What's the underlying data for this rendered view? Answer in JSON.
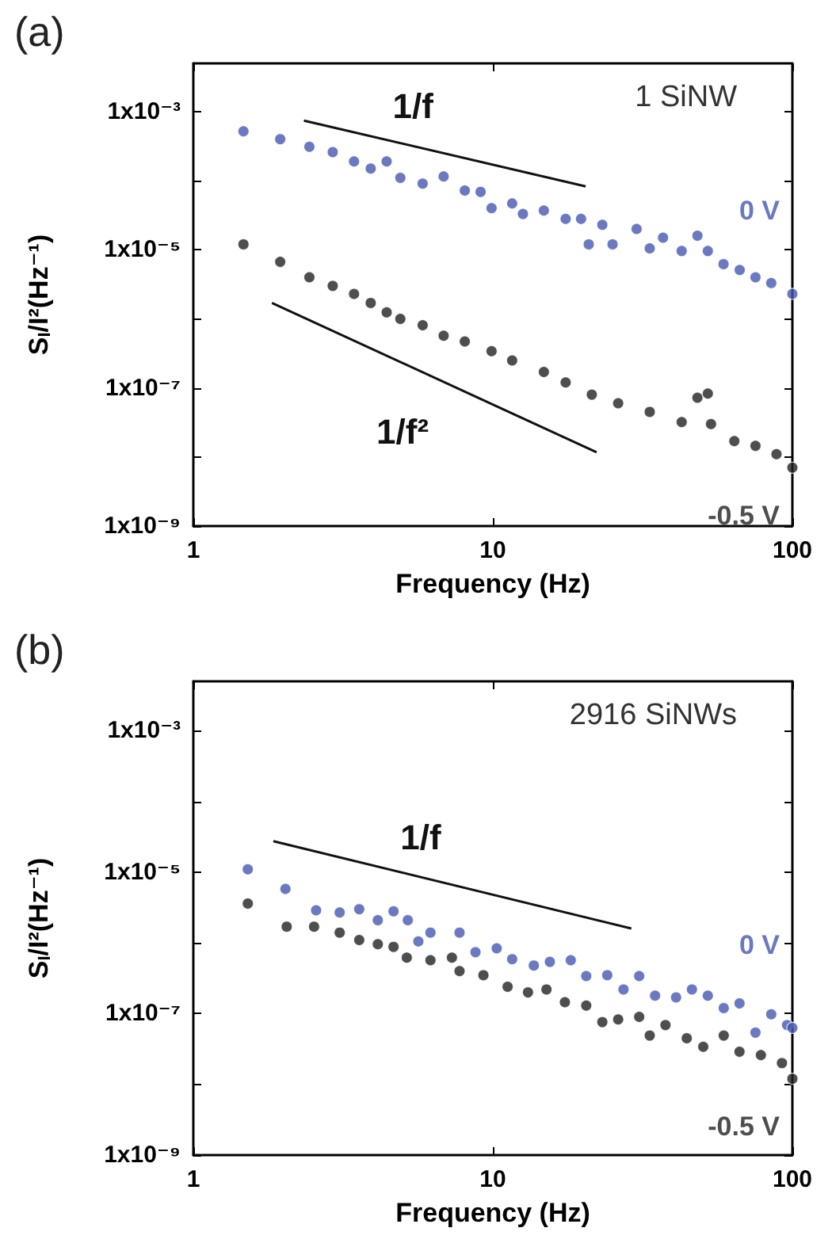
{
  "chart_data": [
    {
      "type": "scatter",
      "title": "(a)",
      "xlabel": "Frequency (Hz)",
      "ylabel": "S$_{I}$/I²(Hz⁻¹)",
      "log": "xy",
      "xlim": [
        1,
        100
      ],
      "xticks": [
        1,
        10,
        100
      ],
      "ylim": [
        1e-09,
        0.005
      ],
      "yticks": [
        {
          "value": 1e-09,
          "label": "1x10⁻⁹"
        },
        {
          "value": 1e-08,
          "label": null
        },
        {
          "value": 1e-07,
          "label": "1x10⁻⁷"
        },
        {
          "value": 1e-06,
          "label": null
        },
        {
          "value": 1e-05,
          "label": "1x10⁻⁵"
        },
        {
          "value": 0.0001,
          "label": null
        },
        {
          "value": 0.001,
          "label": "1x10⁻³"
        }
      ],
      "grid": false,
      "legend": false,
      "marker": "circle",
      "annotations": [
        "1 SiNW",
        "1/f",
        "1/f²"
      ],
      "series": [
        {
          "name": "0 V",
          "color": "#4557b0",
          "x": [
            1.47,
            1.95,
            2.44,
            2.92,
            3.44,
            3.91,
            4.42,
            4.91,
            5.83,
            6.85,
            8.06,
            9.1,
            9.9,
            11.6,
            12.6,
            14.8,
            17.5,
            19.7,
            20.9,
            23.2,
            25.1,
            30.2,
            33.4,
            37,
            42.7,
            48.2,
            52.2,
            58.9,
            66.7,
            75.3,
            85,
            100
          ],
          "values": [
            0.00052,
            0.0004,
            0.00031,
            0.00026,
            0.00019,
            0.00015,
            0.00019,
            0.00011,
            9.1e-05,
            0.000115,
            7.2e-05,
            6.9e-05,
            4e-05,
            4.7e-05,
            3.3e-05,
            3.7e-05,
            2.8e-05,
            2.8e-05,
            1.2e-05,
            2.3e-05,
            1.2e-05,
            2e-05,
            1.05e-05,
            1.5e-05,
            9.6e-06,
            1.6e-05,
            9.6e-06,
            6.2e-06,
            5.1e-06,
            4e-06,
            3.3e-06,
            2.3e-06
          ]
        },
        {
          "name": "-0.5 V",
          "color": "#222222",
          "x": [
            1.47,
            1.95,
            2.44,
            2.92,
            3.44,
            3.91,
            4.42,
            4.91,
            5.83,
            6.85,
            8.06,
            9.9,
            11.6,
            14.8,
            17.5,
            21.4,
            26.2,
            33.4,
            42.7,
            48.2,
            52.2,
            53.5,
            64,
            75.3,
            88.5,
            100
          ],
          "values": [
            1.2e-05,
            6.7e-06,
            4e-06,
            3e-06,
            2.3e-06,
            1.7e-06,
            1.24e-06,
            1e-06,
            8.1e-07,
            5.7e-07,
            4.7e-07,
            3.4e-07,
            2.5e-07,
            1.7e-07,
            1.2e-07,
            8e-08,
            6e-08,
            4.5e-08,
            3.2e-08,
            7.2e-08,
            8.3e-08,
            3e-08,
            1.7e-08,
            1.45e-08,
            1.1e-08,
            7e-09
          ]
        },
        {
          "type": "line",
          "marker": "none",
          "color": "#111111",
          "x": [
            2.34,
            20.4
          ],
          "values": [
            0.00074,
            8.3e-05
          ]
        },
        {
          "type": "line",
          "marker": "none",
          "color": "#111111",
          "x": [
            1.83,
            22.2
          ],
          "values": [
            1.7e-06,
            1.17e-08
          ]
        }
      ]
    },
    {
      "type": "scatter",
      "title": "(b)",
      "xlabel": "Frequency (Hz)",
      "ylabel": "S$_{I}$/I²(Hz⁻¹)",
      "log": "xy",
      "xlim": [
        1,
        100
      ],
      "xticks": [
        1,
        10,
        100
      ],
      "ylim": [
        1e-09,
        0.005
      ],
      "yticks": [
        {
          "value": 1e-09,
          "label": "1x10⁻⁹"
        },
        {
          "value": 1e-08,
          "label": null
        },
        {
          "value": 1e-07,
          "label": "1x10⁻⁷"
        },
        {
          "value": 1e-06,
          "label": null
        },
        {
          "value": 1e-05,
          "label": "1x10⁻⁵"
        },
        {
          "value": 0.0001,
          "label": null
        },
        {
          "value": 0.001,
          "label": "1x10⁻³"
        }
      ],
      "grid": false,
      "legend": false,
      "marker": "circle",
      "annotations": [
        "2916 SiNWs",
        "1/f"
      ],
      "series": [
        {
          "name": "0 V",
          "color": "#4557b0",
          "x": [
            1.52,
            2.03,
            2.57,
            3.08,
            3.58,
            4.13,
            4.66,
            5.2,
            5.64,
            6.19,
            7.74,
            8.75,
            10.3,
            11.6,
            13.7,
            15.5,
            18.2,
            20.5,
            24.1,
            27.3,
            30.8,
            34.8,
            40.9,
            46.2,
            52.2,
            59,
            66.6,
            75.3,
            85,
            96,
            100
          ],
          "values": [
            1.1e-05,
            5.8e-06,
            2.9e-06,
            2.7e-06,
            3e-06,
            2.1e-06,
            2.8e-06,
            2.1e-06,
            1.05e-06,
            1.4e-06,
            1.4e-06,
            7.4e-07,
            8.4e-07,
            5.9e-07,
            4.8e-07,
            5.4e-07,
            5.7e-07,
            3.4e-07,
            3.5e-07,
            2.2e-07,
            3.4e-07,
            1.8e-07,
            1.7e-07,
            2.2e-07,
            1.8e-07,
            1.2e-07,
            1.4e-07,
            5.4e-08,
            9.8e-08,
            6.9e-08,
            6.3e-08
          ]
        },
        {
          "name": "-0.5 V",
          "color": "#222222",
          "x": [
            1.52,
            2.05,
            2.53,
            3.08,
            3.58,
            4.13,
            4.66,
            5.16,
            6.19,
            7.3,
            7.74,
            9.3,
            11.2,
            13.1,
            15.1,
            17.4,
            20.5,
            23.2,
            26.2,
            30.8,
            33.4,
            37.7,
            44.4,
            50.4,
            59,
            66.6,
            78.5,
            92.3,
            100
          ],
          "values": [
            3.6e-06,
            1.7e-06,
            1.7e-06,
            1.4e-06,
            1.1e-06,
            9.6e-07,
            8.8e-07,
            6.2e-07,
            5.7e-07,
            6.2e-07,
            4e-07,
            3.5e-07,
            2.4e-07,
            2e-07,
            2.2e-07,
            1.45e-07,
            1.3e-07,
            7.6e-08,
            8.3e-08,
            9e-08,
            4.9e-08,
            6.9e-08,
            4.5e-08,
            3.4e-08,
            4.9e-08,
            2.9e-08,
            2.6e-08,
            2e-08,
            1.2e-08
          ]
        },
        {
          "type": "line",
          "marker": "none",
          "color": "#111111",
          "x": [
            1.85,
            29
          ],
          "values": [
            2.75e-05,
            1.6e-06
          ]
        }
      ]
    }
  ]
}
